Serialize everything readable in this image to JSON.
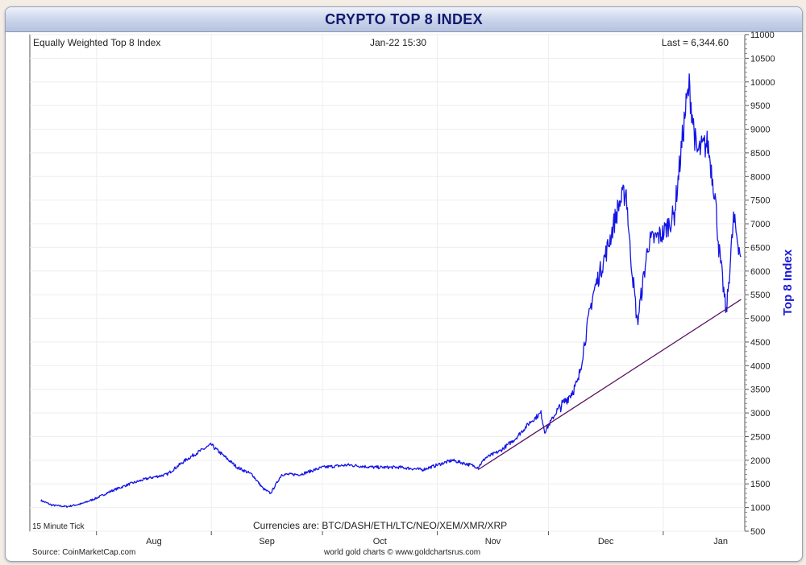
{
  "header": {
    "title": "CRYPTO TOP 8 INDEX"
  },
  "panel": {
    "name": "Equally Weighted Top 8 Index",
    "timestamp": "Jan-22  15:30",
    "last": "Last = 6,344.60",
    "tick_note": "15 Minute Tick",
    "currencies": "Currencies are: BTC/DASH/ETH/LTC/NEO/XEM/XMR/XRP"
  },
  "footer": {
    "source": "Source: CoinMarketCap.com",
    "credit": "world gold charts © www.goldchartsrus.com"
  },
  "chart_data": {
    "type": "line",
    "title": "CRYPTO TOP 8 INDEX",
    "ylabel": "Top 8 Index",
    "xlabel": "",
    "ylim": [
      500,
      11000
    ],
    "y_ticks": [
      500,
      1000,
      1500,
      2000,
      2500,
      3000,
      3500,
      4000,
      4500,
      5000,
      5500,
      6000,
      6500,
      7000,
      7500,
      8000,
      8500,
      9000,
      9500,
      10000,
      10500,
      11000
    ],
    "x_ticks": [
      "Aug",
      "Sep",
      "Oct",
      "Nov",
      "Dec",
      "Jan"
    ],
    "grid": true,
    "colors": {
      "series": "#1515e6",
      "trendline": "#5a1060",
      "axis_label": "#1a1ad6"
    },
    "series": [
      {
        "x": [
          "2017-07-17",
          "2017-07-20",
          "2017-07-24",
          "2017-07-28",
          "2017-08-01",
          "2017-08-05",
          "2017-08-10",
          "2017-08-15",
          "2017-08-20",
          "2017-08-25",
          "2017-08-28",
          "2017-09-01",
          "2017-09-02",
          "2017-09-05",
          "2017-09-08",
          "2017-09-12",
          "2017-09-15",
          "2017-09-17",
          "2017-09-20",
          "2017-09-25",
          "2017-10-01",
          "2017-10-08",
          "2017-10-15",
          "2017-10-22",
          "2017-10-28",
          "2017-11-01",
          "2017-11-05",
          "2017-11-10",
          "2017-11-12",
          "2017-11-14",
          "2017-11-18",
          "2017-11-22",
          "2017-11-26",
          "2017-11-29",
          "2017-11-30",
          "2017-12-03",
          "2017-12-06",
          "2017-12-07",
          "2017-12-09",
          "2017-12-11",
          "2017-12-13",
          "2017-12-17",
          "2017-12-20",
          "2017-12-22",
          "2017-12-23",
          "2017-12-25",
          "2017-12-28",
          "2018-01-01",
          "2018-01-04",
          "2018-01-07",
          "2018-01-08",
          "2018-01-10",
          "2018-01-13",
          "2018-01-15",
          "2018-01-16",
          "2018-01-18",
          "2018-01-20",
          "2018-01-22"
        ],
        "values": [
          1150,
          1050,
          1020,
          1080,
          1200,
          1350,
          1500,
          1620,
          1700,
          2000,
          2150,
          2330,
          2250,
          2050,
          1850,
          1700,
          1400,
          1300,
          1700,
          1700,
          1850,
          1900,
          1850,
          1850,
          1800,
          1900,
          2000,
          1900,
          1850,
          2050,
          2200,
          2450,
          2800,
          3000,
          2600,
          3000,
          3300,
          3400,
          3650,
          4600,
          5500,
          6500,
          7400,
          7700,
          6500,
          4900,
          6600,
          6800,
          7200,
          9400,
          9900,
          8500,
          8700,
          7600,
          6500,
          5100,
          7100,
          6300
        ]
      }
    ],
    "trendline": {
      "x": [
        "2017-11-12",
        "2018-01-22"
      ],
      "values": [
        1800,
        5400
      ]
    }
  }
}
